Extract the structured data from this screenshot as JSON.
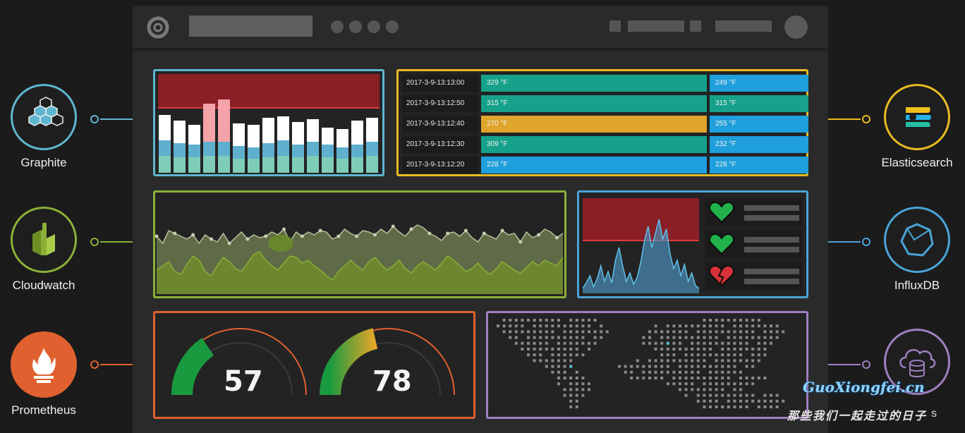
{
  "sources_left": [
    {
      "label": "Graphite",
      "color": "#5fb6d0",
      "icon": "graphite-hexagons-icon"
    },
    {
      "label": "Cloudwatch",
      "color": "#8ab038",
      "icon": "cloudwatch-icon"
    },
    {
      "label": "Prometheus",
      "color": "#e0612f",
      "icon": "prometheus-flame-icon"
    }
  ],
  "sources_right": [
    {
      "label": "Elasticsearch",
      "color": "#e8bb22",
      "icon": "elasticsearch-icon"
    },
    {
      "label": "InfluxDB",
      "color": "#4aa4d8",
      "icon": "influxdb-icon"
    },
    {
      "label": "",
      "color": "#9f7fc0",
      "icon": "cloud-database-icon"
    }
  ],
  "table": {
    "rows": [
      {
        "time": "2017-3-9-13:13:00",
        "v1": "329 °F",
        "v2": "249 °F",
        "c1": "#16a18a",
        "c2": "#1f9fdc"
      },
      {
        "time": "2017-3-9-13:12:50",
        "v1": "315 °F",
        "v2": "315 °F",
        "c1": "#16a18a",
        "c2": "#16a18a"
      },
      {
        "time": "2017-3-9-13:12:40",
        "v1": "270 °F",
        "v2": "255 °F",
        "c1": "#dfa42a",
        "c2": "#1f9fdc"
      },
      {
        "time": "2017-3-9-13:12:30",
        "v1": "309 °F",
        "v2": "232 °F",
        "c1": "#16a18a",
        "c2": "#1f9fdc"
      },
      {
        "time": "2017-3-9-13:12:20",
        "v1": "228 °F",
        "v2": "228 °F",
        "c1": "#1f9fdc",
        "c2": "#1f9fdc"
      }
    ]
  },
  "gauges": [
    {
      "value": "57",
      "level": 0.57
    },
    {
      "value": "78",
      "level": 0.78
    }
  ],
  "status": [
    "ok",
    "ok",
    "broken"
  ],
  "colors": {
    "alert_red": "#8a2026",
    "threshold": "#e23b3b",
    "green_panel": "#8ab038",
    "blue_panel": "#4aa4d8",
    "orange_panel": "#e0612f",
    "purple_panel": "#9f7fc0",
    "yellow_panel": "#e8bb22"
  },
  "watermark": {
    "site": "GuoXiongfei.cn",
    "cn": "那些我们一起走过的日子",
    "partial": "s"
  }
}
